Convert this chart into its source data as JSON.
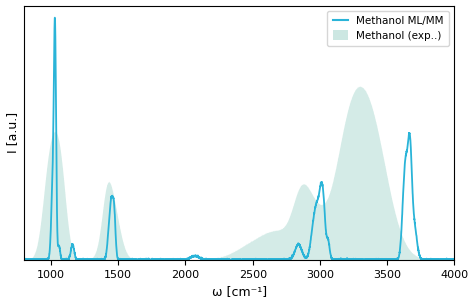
{
  "xlabel": "ω [cm⁻¹]",
  "ylabel": "I [a.u.]",
  "xlim": [
    800,
    4000
  ],
  "ylim": [
    0,
    1.05
  ],
  "line_color": "#2ab4d8",
  "fill_color": "#aad8d0",
  "fill_alpha": 0.5,
  "legend_line_label": "Methanol ML/MM",
  "legend_fill_label": "Methanol (exp..)",
  "line_width": 1.3,
  "x_ticks": [
    1000,
    1500,
    2000,
    2500,
    3000,
    3500,
    4000
  ]
}
